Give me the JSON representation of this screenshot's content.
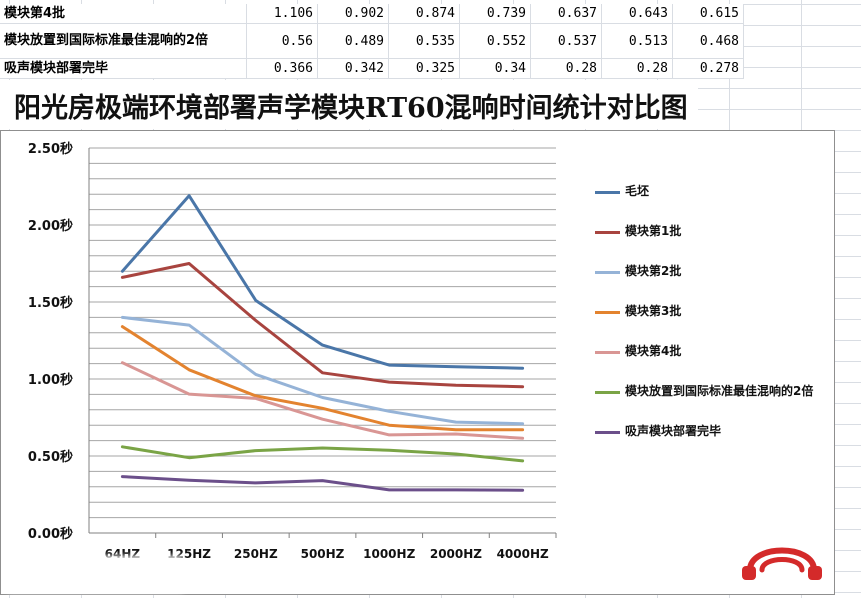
{
  "table": {
    "rows": [
      {
        "label": "模块第4批",
        "values": [
          "1.106",
          "0.902",
          "0.874",
          "0.739",
          "0.637",
          "0.643",
          "0.615"
        ]
      },
      {
        "label": "模块放置到国际标准最佳混响的2倍",
        "values": [
          "0.56",
          "0.489",
          "0.535",
          "0.552",
          "0.537",
          "0.513",
          "0.468"
        ]
      },
      {
        "label": "吸声模块部署完毕",
        "values": [
          "0.366",
          "0.342",
          "0.325",
          "0.34",
          "0.28",
          "0.28",
          "0.278"
        ]
      }
    ]
  },
  "chart_data": {
    "type": "line",
    "title": "阳光房极端环境部署声学模块RT60混响时间统计对比图",
    "xlabel": "",
    "ylabel": "",
    "categories": [
      "64HZ",
      "125HZ",
      "250HZ",
      "500HZ",
      "1000HZ",
      "2000HZ",
      "4000HZ"
    ],
    "ylim": [
      0,
      2.5
    ],
    "y_ticks": [
      0,
      0.5,
      1.0,
      1.5,
      2.0,
      2.5
    ],
    "y_tick_labels": [
      "0.00秒",
      "0.50秒",
      "1.00秒",
      "1.50秒",
      "2.00秒",
      "2.50秒"
    ],
    "grid": true,
    "legend_position": "right",
    "series": [
      {
        "name": "毛坯",
        "color": "#4a76a8",
        "values": [
          1.7,
          2.19,
          1.51,
          1.22,
          1.09,
          1.08,
          1.07
        ]
      },
      {
        "name": "模块第1批",
        "color": "#a8443f",
        "values": [
          1.66,
          1.75,
          1.38,
          1.04,
          0.98,
          0.96,
          0.95
        ]
      },
      {
        "name": "模块第2批",
        "color": "#95b3d7",
        "values": [
          1.4,
          1.35,
          1.03,
          0.88,
          0.79,
          0.72,
          0.71
        ]
      },
      {
        "name": "模块第3批",
        "color": "#e3832f",
        "values": [
          1.34,
          1.06,
          0.89,
          0.81,
          0.7,
          0.67,
          0.67
        ]
      },
      {
        "name": "模块第4批",
        "color": "#d99694",
        "values": [
          1.106,
          0.902,
          0.874,
          0.739,
          0.637,
          0.643,
          0.615
        ]
      },
      {
        "name": "模块放置到国际标准最佳混响的2倍",
        "color": "#7aa446",
        "values": [
          0.56,
          0.489,
          0.535,
          0.552,
          0.537,
          0.513,
          0.468
        ]
      },
      {
        "name": "吸声模块部署完毕",
        "color": "#6b4f8a",
        "values": [
          0.366,
          0.342,
          0.325,
          0.34,
          0.28,
          0.28,
          0.278
        ]
      }
    ]
  },
  "logo": {
    "icon": "headphones-logo-icon",
    "color": "#d42a2a"
  }
}
